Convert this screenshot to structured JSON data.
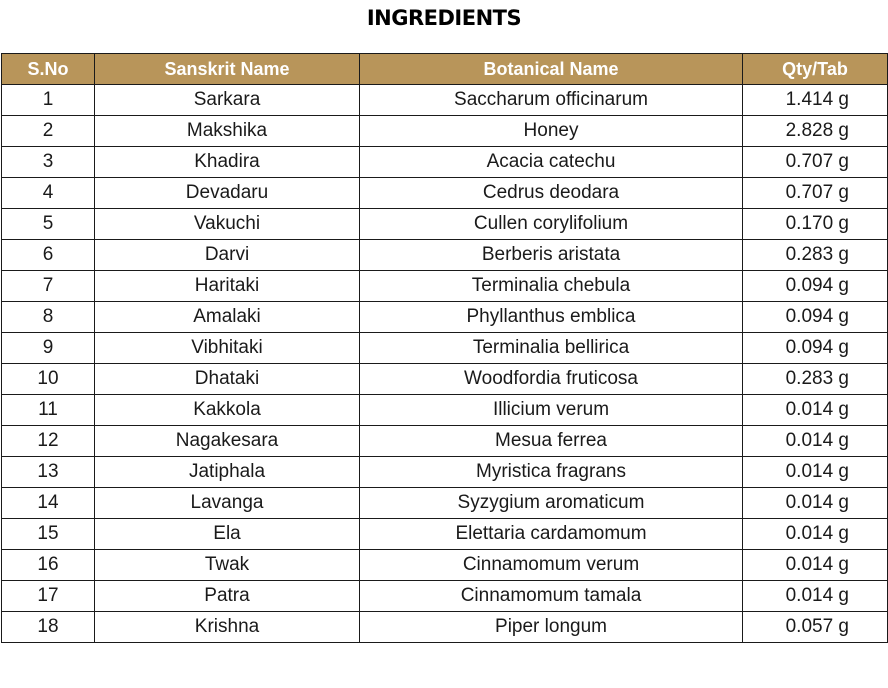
{
  "title": "INGREDIENTS",
  "colors": {
    "header_bg": "#b8955a",
    "header_text": "#ffffff",
    "border": "#1a1a1a"
  },
  "table": {
    "headers": [
      "S.No",
      "Sanskrit Name",
      "Botanical Name",
      "Qty/Tab"
    ],
    "rows": [
      [
        "1",
        "Sarkara",
        "Saccharum officinarum",
        "1.414 g"
      ],
      [
        "2",
        "Makshika",
        "Honey",
        "2.828 g"
      ],
      [
        "3",
        "Khadira",
        "Acacia catechu",
        "0.707 g"
      ],
      [
        "4",
        "Devadaru",
        "Cedrus deodara",
        "0.707 g"
      ],
      [
        "5",
        "Vakuchi",
        "Cullen corylifolium",
        "0.170 g"
      ],
      [
        "6",
        "Darvi",
        "Berberis aristata",
        "0.283 g"
      ],
      [
        "7",
        "Haritaki",
        "Terminalia chebula",
        "0.094 g"
      ],
      [
        "8",
        "Amalaki",
        "Phyllanthus emblica",
        "0.094 g"
      ],
      [
        "9",
        "Vibhitaki",
        "Terminalia bellirica",
        "0.094 g"
      ],
      [
        "10",
        "Dhataki",
        "Woodfordia fruticosa",
        "0.283 g"
      ],
      [
        "11",
        "Kakkola",
        "Illicium verum",
        "0.014 g"
      ],
      [
        "12",
        "Nagakesara",
        "Mesua ferrea",
        "0.014 g"
      ],
      [
        "13",
        "Jatiphala",
        "Myristica fragrans",
        "0.014 g"
      ],
      [
        "14",
        "Lavanga",
        "Syzygium aromaticum",
        "0.014 g"
      ],
      [
        "15",
        "Ela",
        "Elettaria cardamomum",
        "0.014 g"
      ],
      [
        "16",
        "Twak",
        "Cinnamomum verum",
        "0.014 g"
      ],
      [
        "17",
        "Patra",
        "Cinnamomum tamala",
        "0.014 g"
      ],
      [
        "18",
        "Krishna",
        "Piper longum",
        "0.057 g"
      ]
    ]
  }
}
